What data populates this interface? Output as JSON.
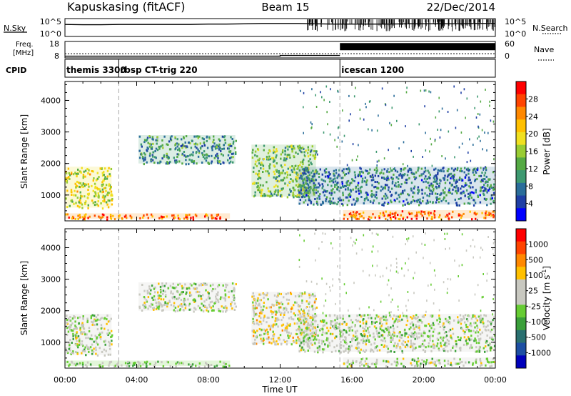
{
  "header": {
    "station": "Kapuskasing (fitACF)",
    "beam": "Beam 15",
    "date": "22/Dec/2014"
  },
  "noise_panel": {
    "left_label": "N.Sky",
    "right_label": "N.Search",
    "left_ticks": [
      "10^5",
      "10^0"
    ],
    "right_ticks": [
      "10^5",
      "10^0"
    ]
  },
  "freq_panel": {
    "left_label_line1": "Freq.",
    "left_label_line2": "[MHz]",
    "right_label": "Nave",
    "left_ticks": [
      "18",
      "8"
    ],
    "right_ticks": [
      "60",
      "0"
    ],
    "freq_mhz": 10.3,
    "nave_high_after": "15:20",
    "nave_low": 4,
    "nave_high": 45
  },
  "cpid_panel": {
    "label": "CPID",
    "programs": [
      {
        "name": "themis 3300",
        "start": "00:00",
        "end": "03:00"
      },
      {
        "name": "rbsp CT-trig 220",
        "start": "03:00",
        "end": "15:20"
      },
      {
        "name": "icescan 1200",
        "start": "15:20",
        "end": "24:00"
      }
    ]
  },
  "power_colorbar": {
    "label": "Power [dB]",
    "ticks": [
      "28",
      "24",
      "20",
      "16",
      "12",
      "8",
      "4"
    ],
    "colors": [
      "#0000ff",
      "#1f3fa5",
      "#2a6d9a",
      "#3d9970",
      "#55aa44",
      "#99cc33",
      "#f0e020",
      "#ffc000",
      "#ff8800",
      "#ff4400",
      "#ff0000"
    ]
  },
  "velocity_colorbar": {
    "label_prefix": "Velocity [m s",
    "label_sup": "-1",
    "label_suffix": "]",
    "ticks": [
      "1000",
      "500",
      "100",
      "25",
      "-25",
      "-100",
      "-500",
      "-1000"
    ],
    "colors": [
      "#0000bb",
      "#1d4fa3",
      "#2a7070",
      "#3a9f3a",
      "#66cc33",
      "#c8c8c0",
      "#c8c8c0",
      "#ffc000",
      "#ff8800",
      "#ff4400",
      "#ff0000"
    ]
  },
  "x_axis": {
    "label": "Time UT",
    "tick_labels": [
      "00:00",
      "04:00",
      "08:00",
      "12:00",
      "16:00",
      "20:00",
      "00:00"
    ]
  },
  "chart_data": {
    "type": "heatmap",
    "title": "Kapuskasing (fitACF)  Beam 15  22/Dec/2014",
    "xlabel": "Time UT",
    "ylabel": "Slant Range [km]",
    "x_range_hours": [
      0,
      24
    ],
    "y_range_km": [
      180,
      4600
    ],
    "y_ticks_km": [
      1000,
      2000,
      3000,
      4000
    ],
    "mode_change_lines_hours": [
      3.0,
      15.33
    ],
    "panels": [
      {
        "name": "Power [dB]",
        "color_range": [
          0,
          32
        ],
        "scatter_features": [
          {
            "feature": "early evening scatter",
            "t_start": 0.0,
            "t_end": 2.6,
            "r_min_km": 600,
            "r_max_km": 1900,
            "value": 18
          },
          {
            "feature": "near-range band",
            "t_start": 0.0,
            "t_end": 9.2,
            "r_min_km": 250,
            "r_max_km": 420,
            "value": 26
          },
          {
            "feature": "drifting arc",
            "t_start": 4.1,
            "t_end": 9.5,
            "r_min_km": 2000,
            "r_max_km": 2900,
            "value": 10
          },
          {
            "feature": "descending echo",
            "t_start": 10.4,
            "t_end": 14.0,
            "r_min_km": 950,
            "r_max_km": 2600,
            "value": 14
          },
          {
            "feature": "night-side multi-layer",
            "t_start": 13.0,
            "t_end": 24.0,
            "r_min_km": 700,
            "r_max_km": 1900,
            "value": 8
          },
          {
            "feature": "lower red band",
            "t_start": 15.5,
            "t_end": 24.0,
            "r_min_km": 260,
            "r_max_km": 520,
            "value": 26
          }
        ]
      },
      {
        "name": "Velocity [m s-1]",
        "color_range": [
          -1000,
          1000
        ],
        "scatter_features": [
          {
            "feature": "early evening scatter",
            "t_start": 0.0,
            "t_end": 2.6,
            "r_min_km": 600,
            "r_max_km": 1900,
            "value": 15
          },
          {
            "feature": "near-range band",
            "t_start": 0.0,
            "t_end": 9.2,
            "r_min_km": 250,
            "r_max_km": 420,
            "value": -100
          },
          {
            "feature": "drifting arc",
            "t_start": 4.1,
            "t_end": 9.5,
            "r_min_km": 2000,
            "r_max_km": 2900,
            "value": 0
          },
          {
            "feature": "descending echo",
            "t_start": 10.4,
            "t_end": 14.0,
            "r_min_km": 950,
            "r_max_km": 2600,
            "value": 150
          },
          {
            "feature": "night-side multi-layer",
            "t_start": 13.0,
            "t_end": 24.0,
            "r_min_km": 700,
            "r_max_km": 1900,
            "value": 0
          },
          {
            "feature": "lower red band",
            "t_start": 15.5,
            "t_end": 24.0,
            "r_min_km": 260,
            "r_max_km": 520,
            "value": 20
          }
        ]
      }
    ],
    "noise_sky_log10": [
      3.6,
      3.5,
      3.5,
      3.6,
      3.6,
      3.6,
      3.6,
      3.6,
      3.7,
      3.7,
      3.8,
      3.9,
      3.9,
      3.9,
      3.8,
      3.7,
      3.7,
      3.7,
      3.7,
      3.8,
      3.8,
      3.8,
      3.8,
      3.9,
      3.9
    ],
    "noise_times_hours": [
      0,
      1,
      2,
      3,
      4,
      5,
      6,
      7,
      8,
      9,
      10,
      11,
      12,
      13,
      14,
      15,
      16,
      17,
      18,
      19,
      20,
      21,
      22,
      23,
      24
    ]
  }
}
